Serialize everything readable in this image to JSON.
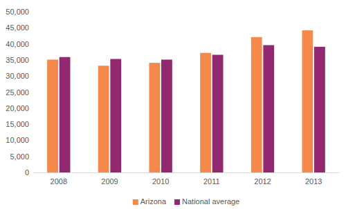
{
  "chart_data": {
    "type": "bar",
    "categories": [
      "2008",
      "2009",
      "2010",
      "2011",
      "2012",
      "2013"
    ],
    "series": [
      {
        "name": "Arizona",
        "color": "#f4894b",
        "values": [
          35100,
          33200,
          34100,
          37200,
          42100,
          44200
        ]
      },
      {
        "name": "National average",
        "color": "#92286f",
        "values": [
          35900,
          35300,
          35100,
          36600,
          39600,
          39100
        ]
      }
    ],
    "ylim": [
      0,
      50000
    ],
    "yticks": [
      0,
      {
        "value": 5000,
        "label": "5,000"
      },
      {
        "value": 10000,
        "label": "10,000"
      },
      {
        "value": 15000,
        "label": "15,000"
      },
      {
        "value": 20000,
        "label": "20,000"
      },
      {
        "value": 25000,
        "label": "25,000"
      },
      {
        "value": 30000,
        "label": "30,000"
      },
      {
        "value": 35000,
        "label": "35,000"
      },
      {
        "value": 40000,
        "label": "40,000"
      },
      {
        "value": 45000,
        "label": "45,000"
      },
      {
        "value": 50000,
        "label": "50,000"
      }
    ],
    "grid": false,
    "legend": "bottom"
  }
}
